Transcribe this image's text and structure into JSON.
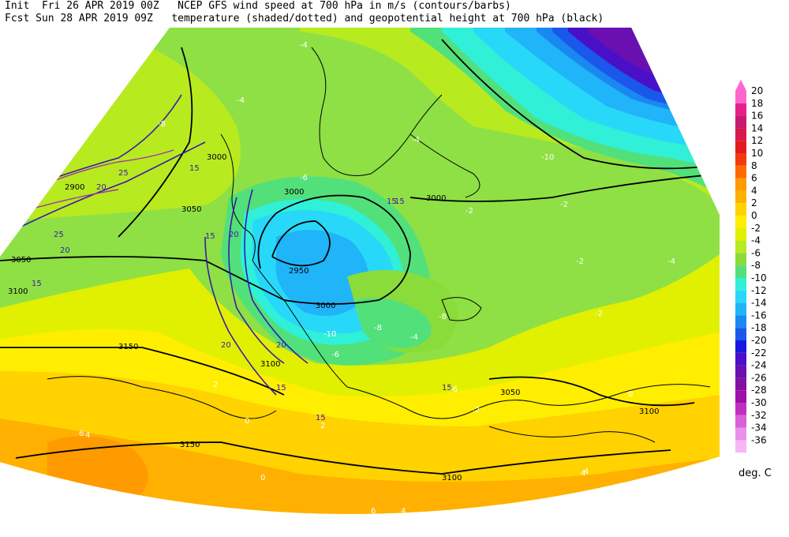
{
  "header": {
    "line1": "Init  Fri 26 APR 2019 00Z   NCEP GFS wind speed at 700 hPa in m/s (contours/barbs)",
    "line2": "Fcst Sun 28 APR 2019 09Z   temperature (shaded/dotted) and geopotential height at 700 hPa (black)"
  },
  "legend": {
    "units": "deg. C",
    "levels": [
      "20",
      "18",
      "16",
      "14",
      "12",
      "10",
      "8",
      "6",
      "4",
      "2",
      "0",
      "-2",
      "-4",
      "-6",
      "-8",
      "-10",
      "-12",
      "-14",
      "-16",
      "-18",
      "-20",
      "-22",
      "-24",
      "-26",
      "-28",
      "-30",
      "-32",
      "-34",
      "-36"
    ],
    "colors": [
      "#ff66cc",
      "#e6208a",
      "#c81a6e",
      "#d8184e",
      "#e41a1c",
      "#f23a0c",
      "#ff6a00",
      "#ff9a00",
      "#ffb000",
      "#ffd200",
      "#ffee00",
      "#e0f000",
      "#b8ea20",
      "#8adc3a",
      "#52e07a",
      "#30f0d8",
      "#28d8f8",
      "#20b4f8",
      "#1a88f0",
      "#1a58ec",
      "#1818e0",
      "#4a10c8",
      "#6a10b0",
      "#8410a0",
      "#a010a8",
      "#c030c0",
      "#d860d8",
      "#ea90ea",
      "#f4b8f4"
    ]
  },
  "height_labels": [
    "3000",
    "3000",
    "3000",
    "2900",
    "3050",
    "3050",
    "3100",
    "2950",
    "3000",
    "3150",
    "3100",
    "3150",
    "3100",
    "3050",
    "3100"
  ],
  "wind_labels": [
    "15",
    "20",
    "25",
    "20",
    "25",
    "20",
    "15",
    "15",
    "20",
    "20",
    "15",
    "15",
    "15",
    "15",
    "15"
  ],
  "temp_labels": [
    "-4",
    "-6",
    "-8",
    "-10",
    "-4",
    "-2",
    "-2",
    "-4",
    "-6",
    "-8",
    "-4",
    "-2",
    "0",
    "2",
    "4",
    "6",
    "4",
    "6",
    "-8",
    "-10",
    "-6",
    "-2",
    "0",
    "-2",
    "-4",
    "4",
    "2",
    "0",
    "4"
  ]
}
